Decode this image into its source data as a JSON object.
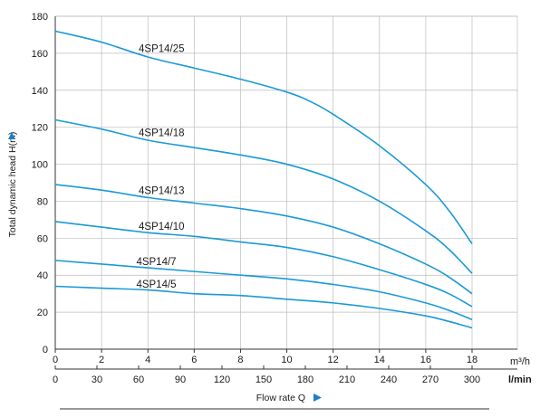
{
  "chart_data": {
    "type": "line",
    "ylabel": "Total dynamic head H(m)",
    "xlabel": "Flow rate Q",
    "x_unit_primary": "m³/h",
    "x_unit_secondary": "l/min",
    "xlim": [
      0,
      18
    ],
    "ylim": [
      0,
      180
    ],
    "x_ticks_primary": [
      "0",
      "2",
      "4",
      "6",
      "8",
      "10",
      "12",
      "14",
      "16",
      "18"
    ],
    "x_ticks_secondary": [
      "0",
      "30",
      "60",
      "90",
      "120",
      "150",
      "180",
      "210",
      "240",
      "270",
      "300"
    ],
    "y_ticks": [
      "0",
      "20",
      "40",
      "60",
      "80",
      "100",
      "120",
      "140",
      "160",
      "180"
    ],
    "grid": true,
    "line_color": "#1a9ad6",
    "series": [
      {
        "name": "4SP14/25",
        "x": [
          0,
          2,
          4,
          6,
          8,
          10,
          11,
          12,
          14,
          16,
          17,
          18
        ],
        "y": [
          172,
          166,
          158,
          152,
          146,
          139,
          134,
          127,
          110,
          89,
          75,
          57
        ]
      },
      {
        "name": "4SP14/18",
        "x": [
          0,
          2,
          4,
          6,
          8,
          10,
          12,
          14,
          16,
          17,
          18
        ],
        "y": [
          124,
          119,
          113,
          109,
          105,
          100,
          92,
          80,
          64,
          54,
          41
        ]
      },
      {
        "name": "4SP14/13",
        "x": [
          0,
          2,
          4,
          6,
          8,
          10,
          12,
          14,
          16,
          17,
          18
        ],
        "y": [
          89,
          86,
          82,
          79,
          76,
          72,
          66,
          57,
          46,
          39,
          30
        ]
      },
      {
        "name": "4SP14/10",
        "x": [
          0,
          2,
          4,
          6,
          8,
          10,
          12,
          14,
          16,
          17,
          18
        ],
        "y": [
          69,
          66,
          63,
          61,
          58,
          55,
          50,
          43,
          35,
          30,
          23
        ]
      },
      {
        "name": "4SP14/7",
        "x": [
          0,
          2,
          4,
          6,
          8,
          10,
          12,
          14,
          16,
          17,
          18
        ],
        "y": [
          48,
          46,
          44,
          42,
          40,
          38,
          35,
          31,
          25,
          21,
          16
        ]
      },
      {
        "name": "4SP14/5",
        "x": [
          0,
          2,
          4,
          6,
          8,
          10,
          12,
          14,
          16,
          17,
          18
        ],
        "y": [
          34,
          33,
          32,
          30,
          29,
          27,
          25,
          22,
          18,
          15,
          11.5
        ]
      }
    ]
  }
}
